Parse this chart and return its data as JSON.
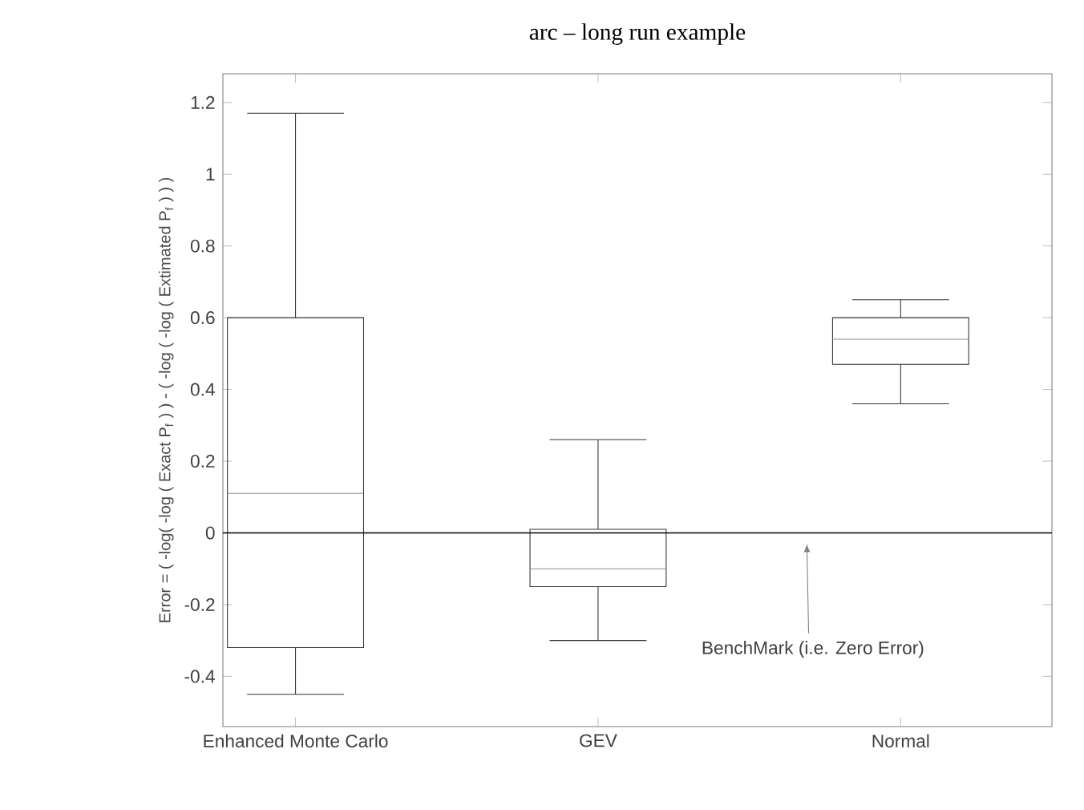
{
  "chart_data": {
    "type": "box",
    "title": "arc – long run example",
    "ylabel": "Error = ( -log( -log ( Exact P$_{f}$ ) ) - ( -log ( -log ( Extimated P$_{f}$ ) ) )",
    "categories": [
      "Enhanced Monte Carlo",
      "GEV",
      "Normal"
    ],
    "boxes": [
      {
        "low": -0.45,
        "q1": -0.32,
        "median": 0.11,
        "q3": 0.6,
        "high": 1.17
      },
      {
        "low": -0.3,
        "q1": -0.15,
        "median": -0.1,
        "q3": 0.01,
        "high": 0.26
      },
      {
        "low": 0.36,
        "q1": 0.47,
        "median": 0.54,
        "q3": 0.6,
        "high": 0.65
      }
    ],
    "ylim": [
      -0.54,
      1.28
    ],
    "yticks": [
      -0.4,
      -0.2,
      0,
      0.2,
      0.4,
      0.6,
      0.8,
      1,
      1.2
    ],
    "ref_lines": [
      {
        "axis": "y",
        "value": 0,
        "color": "#000000"
      }
    ],
    "annotations": [
      "BenchMark (i.e. Zero Error)"
    ]
  }
}
